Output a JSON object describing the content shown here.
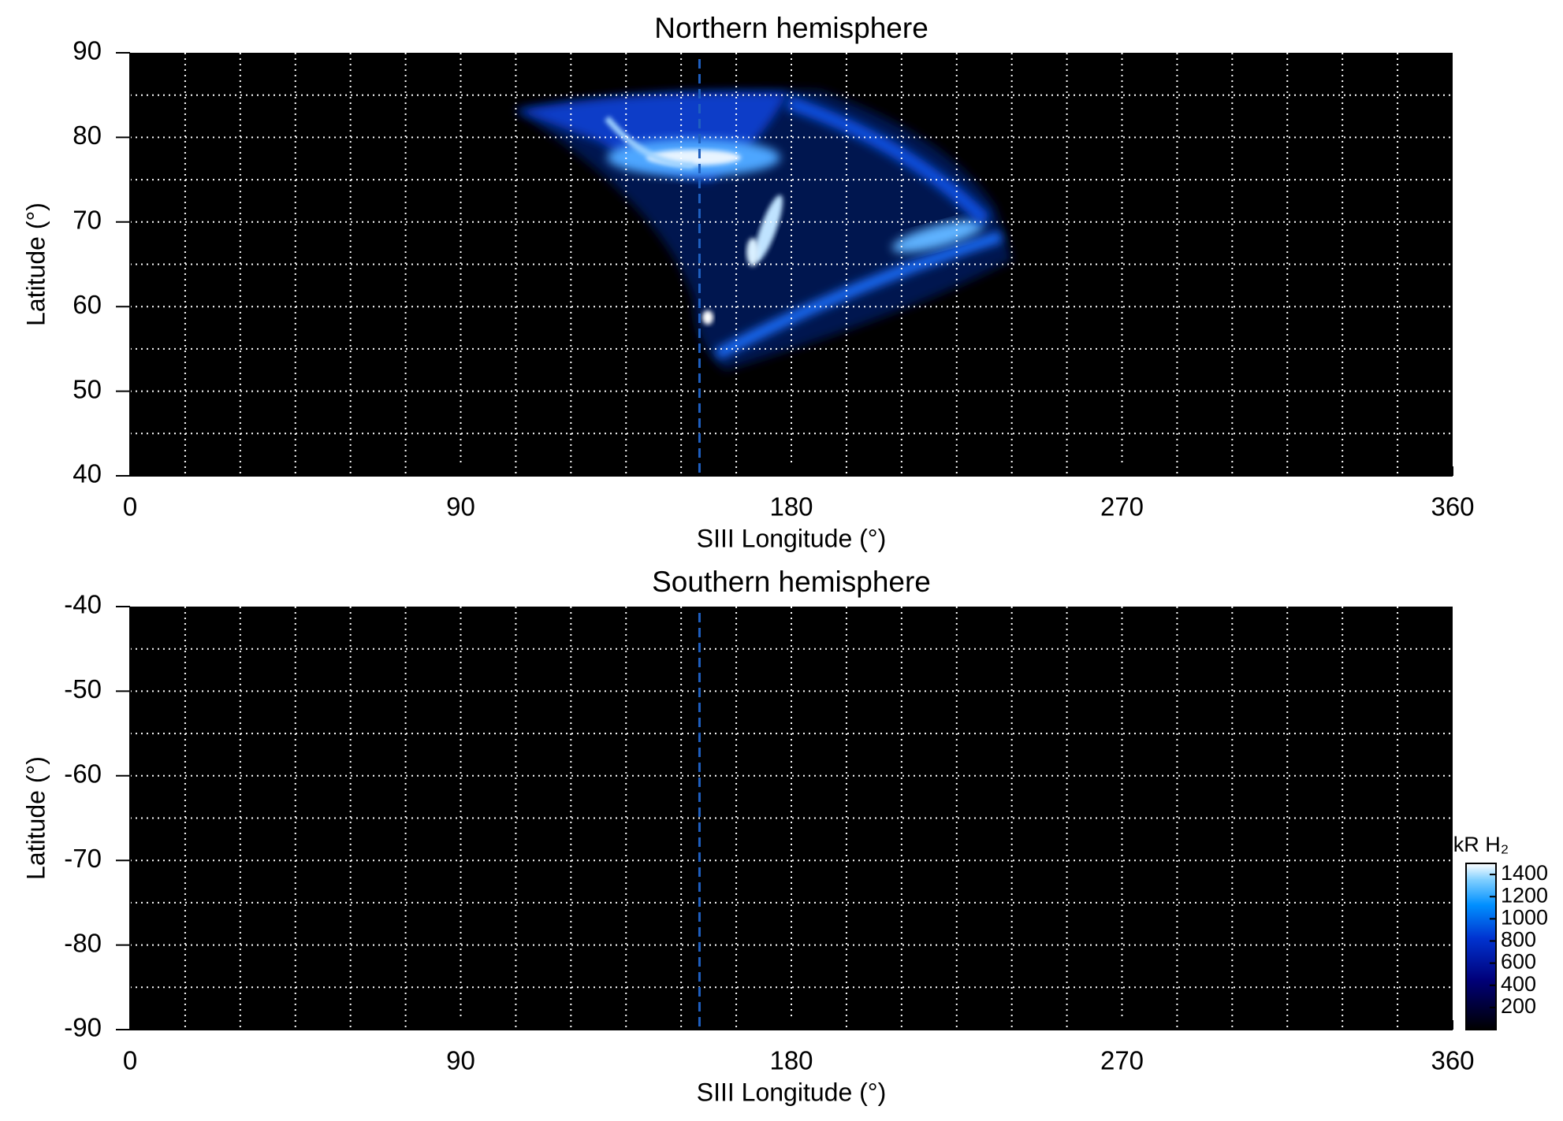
{
  "chart_data": [
    {
      "type": "map",
      "title": "Northern hemisphere",
      "x_label": "SIII Longitude (°)",
      "y_label": "Latitude (°)",
      "xlim": [
        0,
        360
      ],
      "xticks": [
        0,
        90,
        180,
        270,
        360
      ],
      "ylim": [
        40,
        90
      ],
      "yticks": [
        40,
        50,
        60,
        70,
        80,
        90
      ],
      "grid": {
        "x_step": 15,
        "y_step": 5,
        "color": "#ffffff"
      },
      "marker_longitude": 155,
      "marker_color": "#1f5fbf"
    },
    {
      "type": "map",
      "title": "Southern hemisphere",
      "x_label": "SIII Longitude (°)",
      "y_label": "Latitude (°)",
      "xlim": [
        0,
        360
      ],
      "xticks": [
        0,
        90,
        180,
        270,
        360
      ],
      "ylim": [
        -90,
        -40
      ],
      "yticks": [
        -90,
        -80,
        -70,
        -60,
        -50,
        -40
      ],
      "grid": {
        "x_step": 15,
        "y_step": 5,
        "color": "#ffffff"
      },
      "marker_longitude": 155,
      "marker_color": "#1f5fbf",
      "colorbar": {
        "label": "kR H₂",
        "lim": [
          0,
          1500
        ],
        "ticks": [
          200,
          400,
          600,
          800,
          1000,
          1200,
          1400
        ]
      }
    }
  ]
}
